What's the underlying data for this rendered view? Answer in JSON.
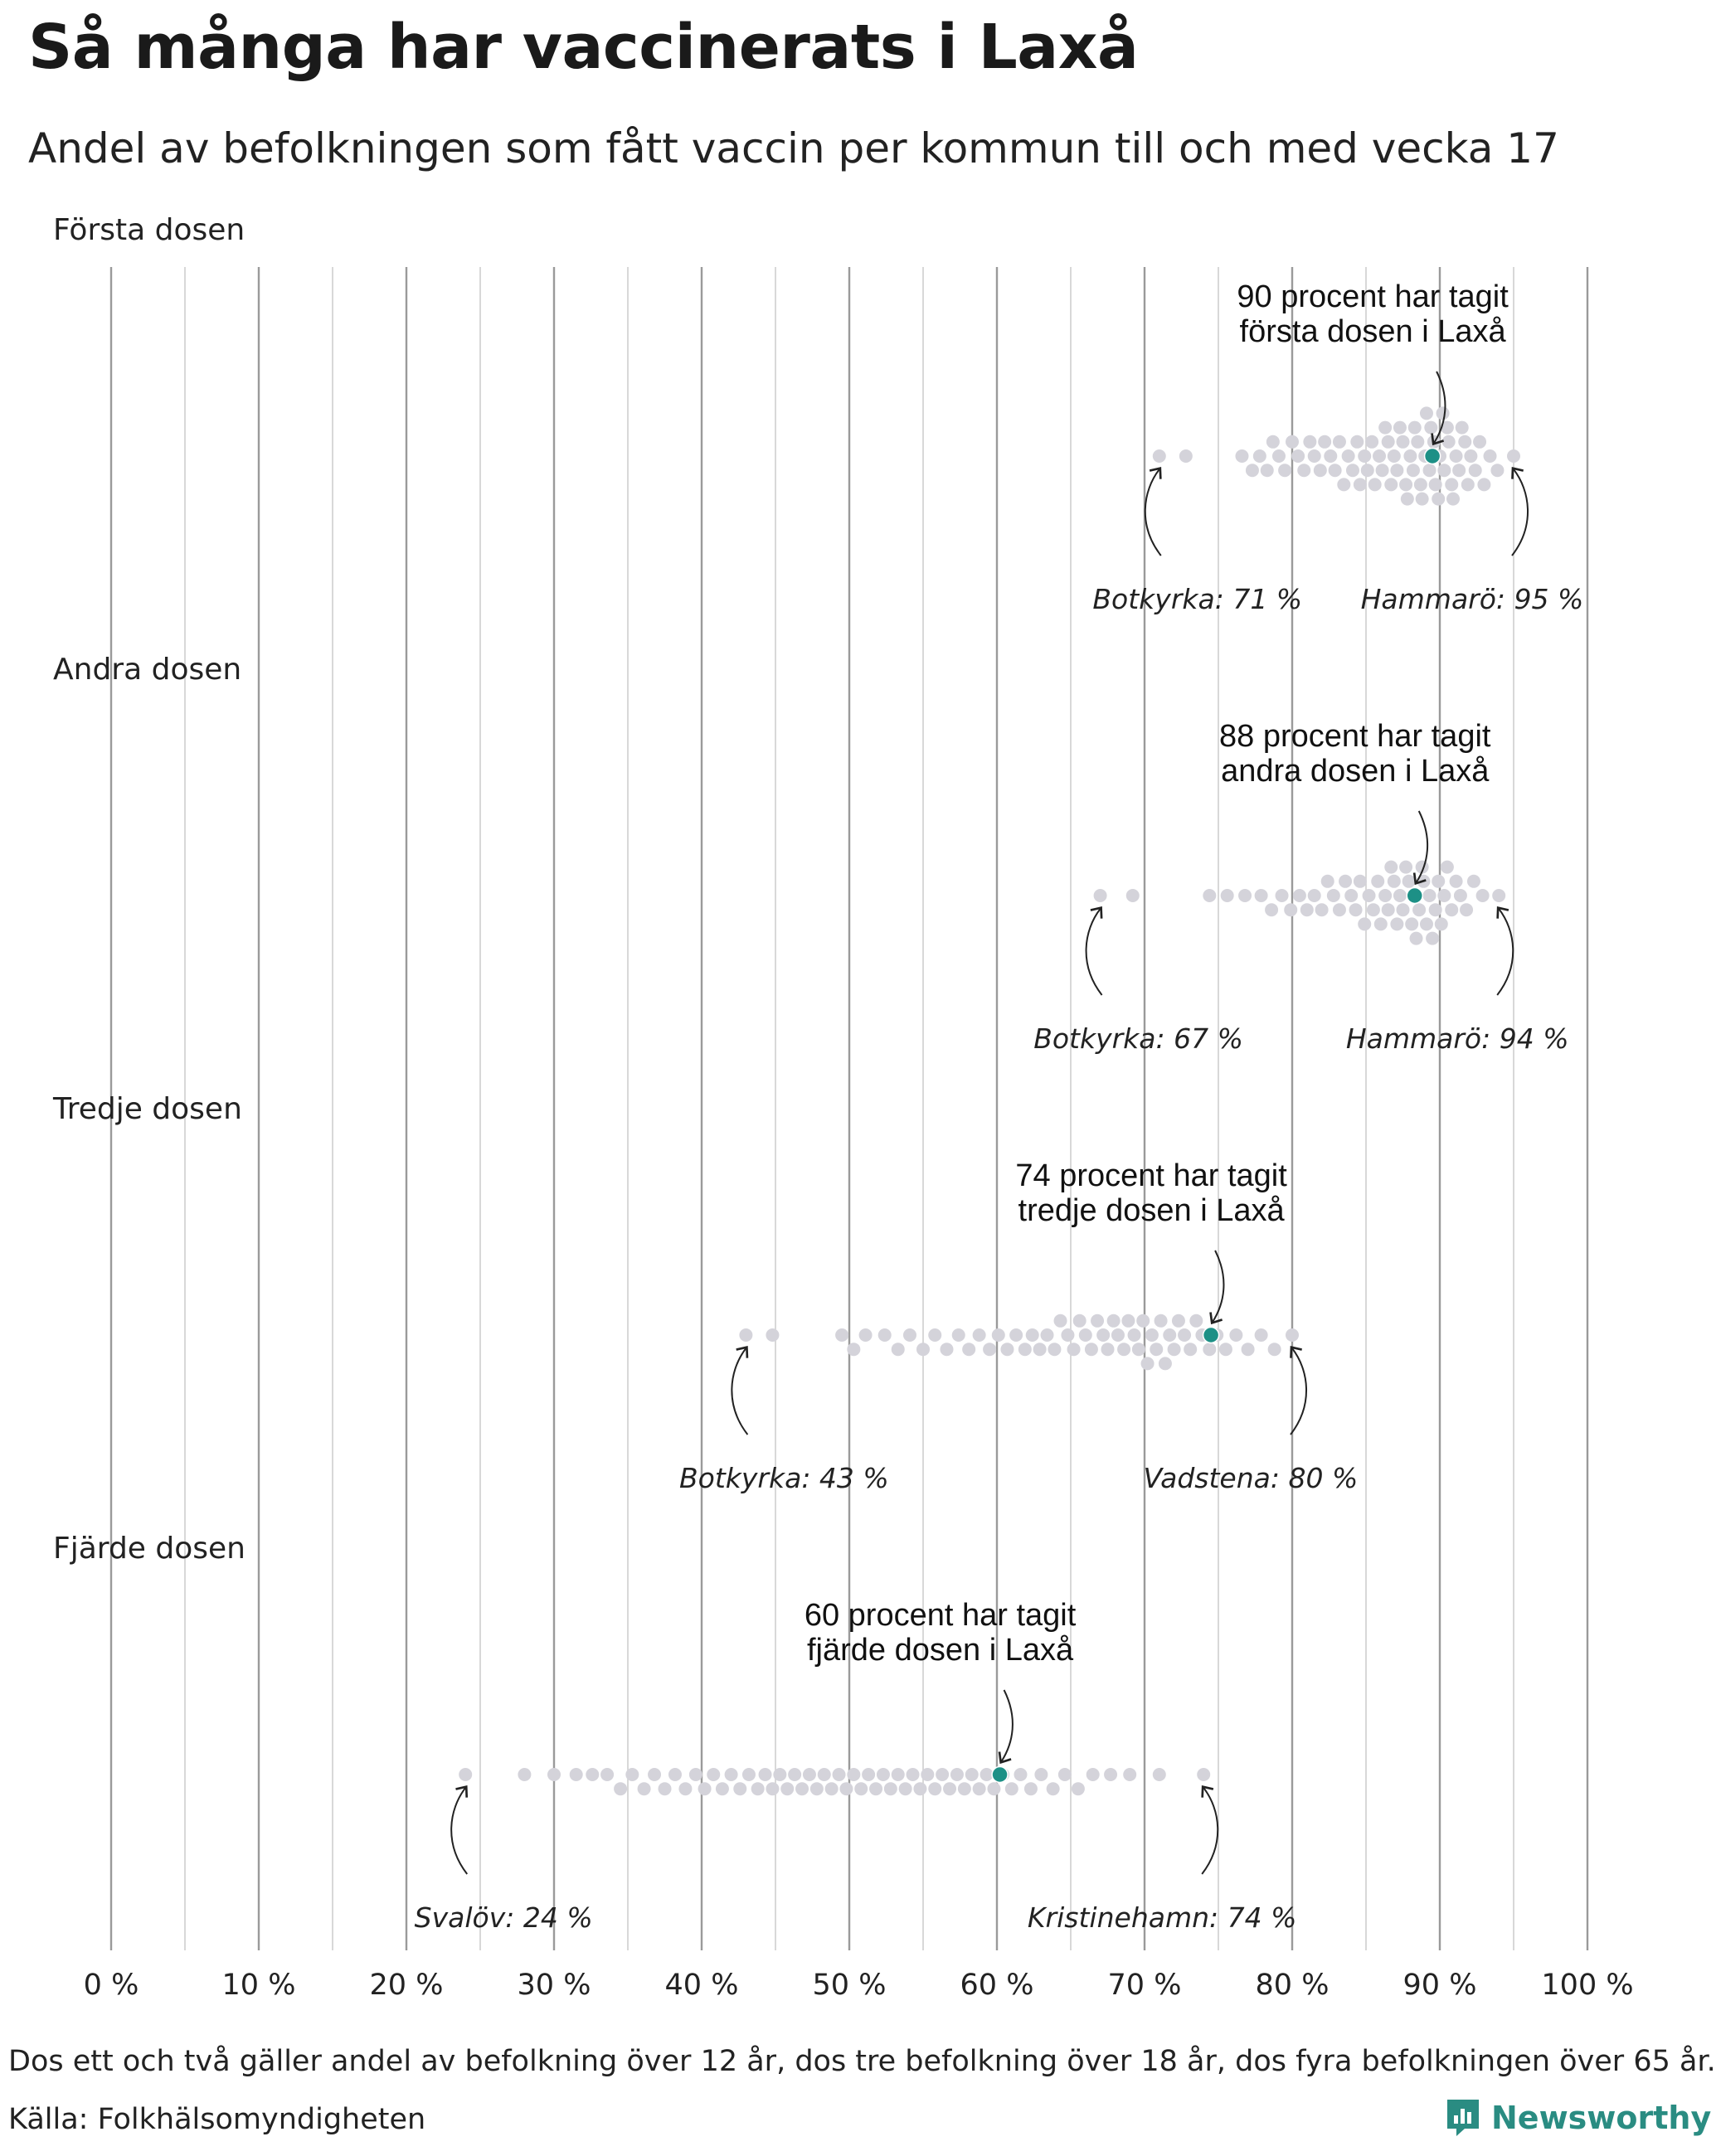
{
  "chart_data": {
    "type": "scatter",
    "variant": "beeswarm",
    "title": "Så många har vaccinerats i Laxå",
    "subtitle": "Andel av befolkningen som fått vaccin per kommun till och med vecka 17",
    "x_range": [
      0,
      100
    ],
    "x_ticks": [
      0,
      10,
      20,
      30,
      40,
      50,
      60,
      70,
      80,
      90,
      100
    ],
    "x_tick_labels": [
      "0 %",
      "10 %",
      "20 %",
      "30 %",
      "40 %",
      "50 %",
      "60 %",
      "70 %",
      "80 %",
      "90 %",
      "100 %"
    ],
    "gridlines_every": 5,
    "highlight_color": "#1d9086",
    "dot_color": "#d4d3da",
    "panels": [
      {
        "name": "Första dosen",
        "highlight": {
          "municipality": "Laxå",
          "value": 89.5
        },
        "annotation": [
          "90 procent har tagit",
          "första dosen i Laxå"
        ],
        "min": {
          "label": "Botkyrka: 71 %",
          "value": 71
        },
        "max": {
          "label": "Hammarö: 95 %",
          "value": 95
        },
        "values": [
          71.0,
          72.8,
          76.6,
          77.3,
          77.8,
          78.3,
          78.7,
          79.1,
          79.5,
          80.0,
          80.4,
          80.8,
          81.2,
          81.5,
          81.9,
          82.2,
          82.6,
          82.9,
          83.2,
          83.5,
          83.8,
          84.1,
          84.4,
          84.6,
          84.9,
          85.1,
          85.4,
          85.6,
          85.9,
          86.1,
          86.3,
          86.5,
          86.7,
          86.9,
          87.1,
          87.3,
          87.5,
          87.7,
          87.8,
          88.0,
          88.2,
          88.3,
          88.5,
          88.7,
          88.8,
          89.0,
          89.1,
          89.3,
          89.4,
          89.6,
          89.7,
          89.9,
          90.0,
          90.2,
          90.3,
          90.5,
          90.6,
          90.8,
          90.9,
          91.1,
          91.3,
          91.5,
          91.7,
          91.9,
          92.1,
          92.4,
          92.7,
          93.0,
          93.4,
          93.9,
          95.0
        ]
      },
      {
        "name": "Andra dosen",
        "highlight": {
          "municipality": "Laxå",
          "value": 88.3
        },
        "annotation": [
          "88 procent har tagit",
          "andra dosen i Laxå"
        ],
        "min": {
          "label": "Botkyrka: 67 %",
          "value": 67
        },
        "max": {
          "label": "Hammarö: 94 %",
          "value": 94
        },
        "values": [
          67.0,
          69.2,
          74.4,
          75.6,
          76.8,
          77.9,
          78.6,
          79.3,
          79.9,
          80.5,
          81.0,
          81.5,
          82.0,
          82.4,
          82.8,
          83.2,
          83.6,
          84.0,
          84.3,
          84.6,
          84.9,
          85.2,
          85.5,
          85.8,
          86.0,
          86.3,
          86.5,
          86.7,
          86.9,
          87.1,
          87.3,
          87.5,
          87.7,
          87.9,
          88.1,
          88.3,
          88.4,
          88.6,
          88.8,
          88.9,
          89.1,
          89.3,
          89.5,
          89.7,
          89.9,
          90.1,
          90.3,
          90.5,
          90.8,
          91.1,
          91.4,
          91.8,
          92.3,
          92.9,
          94.0
        ]
      },
      {
        "name": "Tredje dosen",
        "highlight": {
          "municipality": "Laxå",
          "value": 74.5
        },
        "annotation": [
          "74 procent har tagit",
          "tredje dosen i Laxå"
        ],
        "min": {
          "label": "Botkyrka: 43 %",
          "value": 43
        },
        "max": {
          "label": "Vadstena: 80 %",
          "value": 80
        },
        "values": [
          43.0,
          44.8,
          49.5,
          50.3,
          51.1,
          52.4,
          53.3,
          54.1,
          55.0,
          55.8,
          56.6,
          57.4,
          58.1,
          58.8,
          59.5,
          60.1,
          60.7,
          61.3,
          61.9,
          62.4,
          62.9,
          63.4,
          63.9,
          64.3,
          64.8,
          65.2,
          65.6,
          66.0,
          66.4,
          66.8,
          67.2,
          67.5,
          67.9,
          68.2,
          68.6,
          68.9,
          69.3,
          69.6,
          69.9,
          70.2,
          70.5,
          70.8,
          71.1,
          71.4,
          71.7,
          72.0,
          72.3,
          72.7,
          73.1,
          73.5,
          73.9,
          74.4,
          74.9,
          75.5,
          76.2,
          77.0,
          77.9,
          78.8,
          80.0
        ]
      },
      {
        "name": "Fjärde dosen",
        "highlight": {
          "municipality": "Laxå",
          "value": 60.2
        },
        "annotation": [
          "60 procent har tagit",
          "fjärde dosen i Laxå"
        ],
        "min": {
          "label": "Svalöv: 24 %",
          "value": 24
        },
        "max": {
          "label": "Kristinehamn: 74 %",
          "value": 74
        },
        "values": [
          24.0,
          28.0,
          30.0,
          31.5,
          32.6,
          33.6,
          34.5,
          35.3,
          36.1,
          36.8,
          37.5,
          38.2,
          38.9,
          39.6,
          40.2,
          40.8,
          41.4,
          42.0,
          42.6,
          43.2,
          43.8,
          44.3,
          44.8,
          45.3,
          45.8,
          46.3,
          46.8,
          47.3,
          47.8,
          48.3,
          48.8,
          49.3,
          49.8,
          50.3,
          50.8,
          51.3,
          51.8,
          52.3,
          52.8,
          53.3,
          53.8,
          54.3,
          54.8,
          55.3,
          55.8,
          56.3,
          56.8,
          57.3,
          57.8,
          58.3,
          58.8,
          59.3,
          59.8,
          60.4,
          61.0,
          61.6,
          62.3,
          63.0,
          63.8,
          64.6,
          65.5,
          66.5,
          67.7,
          69.0,
          71.0,
          74.0
        ]
      }
    ]
  },
  "footer": {
    "note": "Dos ett och två gäller andel av befolkning över 12 år, dos tre befolkning över 18 år, dos fyra befolkningen över 65 år.",
    "source": "Källa: Folkhälsomyndigheten",
    "brand": "Newsworthy"
  }
}
